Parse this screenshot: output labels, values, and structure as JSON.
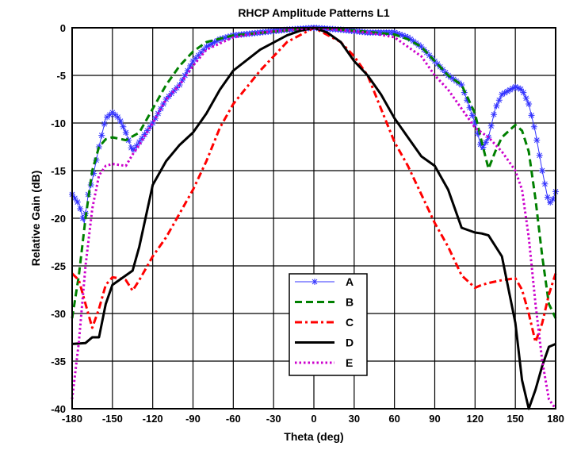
{
  "chart_data": {
    "type": "line",
    "title": "RHCP Amplitude Patterns L1",
    "xlabel": "Theta (deg)",
    "ylabel": "Relative Gain (dB)",
    "xlim": [
      -180,
      180
    ],
    "ylim": [
      -40,
      0
    ],
    "xticks": [
      "-180",
      "-150",
      "-120",
      "-90",
      "-60",
      "-30",
      "0",
      "30",
      "60",
      "90",
      "120",
      "150",
      "180"
    ],
    "yticks": [
      "0",
      "-5",
      "-10",
      "-15",
      "-20",
      "-25",
      "-30",
      "-35",
      "-40"
    ],
    "grid": true,
    "legend_position": "bottom-center",
    "series": [
      {
        "name": "A",
        "color": "#3333ff",
        "style": "star",
        "x": [
          -180,
          -175,
          -171,
          -168,
          -165,
          -160,
          -155,
          -150,
          -145,
          -140,
          -135,
          -130,
          -120,
          -110,
          -100,
          -90,
          -80,
          -70,
          -60,
          -40,
          -20,
          0,
          20,
          40,
          60,
          70,
          80,
          90,
          100,
          110,
          120,
          125,
          130,
          135,
          140,
          150,
          155,
          160,
          165,
          170,
          175,
          178,
          180
        ],
        "y": [
          -17.5,
          -18.5,
          -20.5,
          -17.5,
          -16,
          -12.5,
          -9.5,
          -8.9,
          -9.5,
          -11,
          -13,
          -12,
          -10,
          -7.5,
          -6,
          -3.5,
          -2,
          -1.2,
          -0.8,
          -0.5,
          -0.2,
          0,
          -0.2,
          -0.5,
          -0.5,
          -1,
          -2,
          -3.5,
          -5,
          -6,
          -10,
          -12.8,
          -11.5,
          -8.5,
          -7,
          -6.2,
          -6.5,
          -8,
          -11,
          -15,
          -18.5,
          -18,
          -17.2
        ]
      },
      {
        "name": "B",
        "color": "#008000",
        "style": "dashed",
        "x": [
          -180,
          -175,
          -170,
          -165,
          -160,
          -155,
          -150,
          -140,
          -130,
          -120,
          -110,
          -100,
          -90,
          -80,
          -60,
          -30,
          0,
          30,
          60,
          70,
          80,
          90,
          100,
          110,
          120,
          125,
          130,
          135,
          140,
          150,
          155,
          160,
          165,
          170,
          175,
          180
        ],
        "y": [
          -30.5,
          -26,
          -20,
          -15,
          -12.5,
          -11.7,
          -11.5,
          -11.8,
          -11,
          -8.5,
          -6,
          -4,
          -2.5,
          -1.5,
          -0.8,
          -0.4,
          0,
          -0.3,
          -0.7,
          -1.2,
          -2,
          -3.5,
          -5,
          -6,
          -9,
          -12,
          -14.8,
          -13,
          -11.5,
          -10.2,
          -10.8,
          -13,
          -18,
          -24,
          -29,
          -30.5
        ]
      },
      {
        "name": "C",
        "color": "#ff0000",
        "style": "dashdot",
        "x": [
          -180,
          -175,
          -170,
          -165,
          -160,
          -155,
          -150,
          -145,
          -140,
          -135,
          -130,
          -120,
          -110,
          -100,
          -90,
          -80,
          -70,
          -60,
          -40,
          -20,
          0,
          20,
          30,
          40,
          50,
          60,
          70,
          80,
          90,
          100,
          110,
          120,
          125,
          130,
          140,
          150,
          155,
          160,
          165,
          170,
          175,
          180
        ],
        "y": [
          -25.8,
          -26.5,
          -29,
          -31.5,
          -29.5,
          -27,
          -26.2,
          -26.3,
          -26.5,
          -27.6,
          -26.5,
          -24,
          -22,
          -19.5,
          -17,
          -14,
          -10.5,
          -8,
          -4.5,
          -1.5,
          0,
          -1.5,
          -3,
          -5,
          -8.5,
          -12,
          -14.5,
          -17.5,
          -20.5,
          -23,
          -26,
          -27.3,
          -27,
          -26.8,
          -26.5,
          -26.3,
          -27.5,
          -30,
          -33,
          -31,
          -28,
          -25.8
        ]
      },
      {
        "name": "D",
        "color": "#000000",
        "style": "solid",
        "x": [
          -180,
          -170,
          -165,
          -160,
          -155,
          -150,
          -145,
          -140,
          -135,
          -130,
          -120,
          -110,
          -100,
          -90,
          -80,
          -70,
          -60,
          -40,
          -20,
          -10,
          0,
          10,
          20,
          30,
          40,
          50,
          60,
          70,
          80,
          90,
          100,
          110,
          120,
          125,
          130,
          140,
          150,
          155,
          160,
          165,
          170,
          175,
          180
        ],
        "y": [
          -33.2,
          -33.1,
          -32.5,
          -32.5,
          -29,
          -27,
          -26.5,
          -26,
          -25.5,
          -23,
          -16.5,
          -14,
          -12.3,
          -11,
          -9,
          -6.5,
          -4.5,
          -2.3,
          -0.8,
          -0.3,
          0,
          -0.5,
          -1.5,
          -3.5,
          -5,
          -7,
          -9.5,
          -11.5,
          -13.5,
          -14.5,
          -17,
          -21,
          -21.5,
          -21.6,
          -21.8,
          -24,
          -31,
          -37,
          -40,
          -38,
          -35.5,
          -33.5,
          -33.2
        ]
      },
      {
        "name": "E",
        "color": "#cc00cc",
        "style": "dotted",
        "x": [
          -180,
          -175,
          -170,
          -165,
          -160,
          -155,
          -150,
          -140,
          -135,
          -130,
          -120,
          -110,
          -100,
          -90,
          -80,
          -60,
          -40,
          0,
          40,
          60,
          70,
          80,
          90,
          100,
          110,
          120,
          130,
          140,
          150,
          155,
          160,
          165,
          170,
          175,
          180
        ],
        "y": [
          -39,
          -33,
          -25,
          -19,
          -15.5,
          -14.5,
          -14.3,
          -14.5,
          -13.3,
          -12.3,
          -10,
          -7.5,
          -6,
          -4,
          -2.3,
          -1,
          -0.5,
          0,
          -0.5,
          -1,
          -2,
          -3,
          -5,
          -6.5,
          -8.5,
          -10.5,
          -11.5,
          -13,
          -15,
          -17,
          -22,
          -29,
          -35,
          -39,
          -40
        ]
      }
    ]
  }
}
